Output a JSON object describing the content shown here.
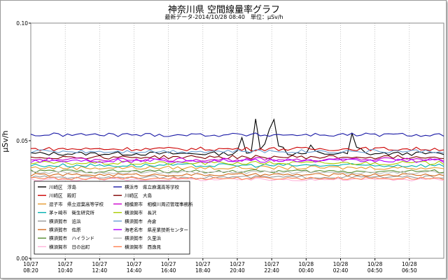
{
  "title": "神奈川県 空間線量率グラフ",
  "subtitle": "最新データ-2014/10/28 08:40　単位：μSv/h",
  "chart_data": {
    "type": "line",
    "ylabel": "μSv/h",
    "ylim": [
      0.0,
      0.1
    ],
    "yticks": [
      "0.00",
      "0.05",
      "0.10"
    ],
    "xticks": [
      [
        "10/27",
        "08:20"
      ],
      [
        "10/27",
        "10:40"
      ],
      [
        "10/27",
        "12:40"
      ],
      [
        "10/27",
        "14:40"
      ],
      [
        "10/27",
        "16:40"
      ],
      [
        "10/27",
        "18:40"
      ],
      [
        "10/27",
        "20:40"
      ],
      [
        "10/27",
        "22:40"
      ],
      [
        "10/28",
        "00:40"
      ],
      [
        "10/28",
        "02:40"
      ],
      [
        "10/28",
        "04:50"
      ],
      [
        "10/28",
        "06:50"
      ]
    ],
    "grid": "x-dotted",
    "legend_position": "bottom-left",
    "series": [
      {
        "name": "川崎区　浮島",
        "color": "#000000",
        "base": 0.0445,
        "jit": 0.0008,
        "spikes": [
          [
            0.51,
            0.052
          ],
          [
            0.545,
            0.06
          ],
          [
            0.575,
            0.058
          ],
          [
            0.585,
            0.066
          ],
          [
            0.605,
            0.05
          ],
          [
            0.68,
            0.049
          ],
          [
            0.78,
            0.055
          ],
          [
            0.795,
            0.048
          ]
        ]
      },
      {
        "name": "川崎区　殿町",
        "color": "#cc0000",
        "base": 0.0465,
        "jit": 0.0008
      },
      {
        "name": "逗子市　県立逗葉高等学校",
        "color": "#e69a2e",
        "base": 0.0385,
        "jit": 0.0008
      },
      {
        "name": "茅ヶ崎市　衛生研究所",
        "color": "#00b0b0",
        "base": 0.0395,
        "jit": 0.0008
      },
      {
        "name": "横須賀市　追浜",
        "color": "#999999",
        "base": 0.0345,
        "jit": 0.0006
      },
      {
        "name": "横須賀市　佐原",
        "color": "#d2691e",
        "base": 0.0355,
        "jit": 0.0006
      },
      {
        "name": "横須賀市　ハイランド",
        "color": "#558b2f",
        "base": 0.037,
        "jit": 0.0007
      },
      {
        "name": "横須賀市　日の出町",
        "color": "#ffb3d9",
        "base": 0.0335,
        "jit": 0.0006
      },
      {
        "name": "横浜市　県立麻溝高等学校",
        "color": "#1a1aa6",
        "base": 0.0525,
        "jit": 0.0008
      },
      {
        "name": "川崎区　大島",
        "color": "#800000",
        "base": 0.043,
        "jit": 0.0008
      },
      {
        "name": "相模原市　相模川周辺管理事務所",
        "color": "#cc00cc",
        "base": 0.042,
        "jit": 0.0008
      },
      {
        "name": "横須賀市　長沢",
        "color": "#aacc00",
        "base": 0.0405,
        "jit": 0.0008
      },
      {
        "name": "横須賀市　舟倉",
        "color": "#6a9fd4",
        "base": 0.0455,
        "jit": 0.0008
      },
      {
        "name": "海老名市　県産業技術センター",
        "color": "#b000ff",
        "base": 0.0415,
        "jit": 0.0008
      },
      {
        "name": "横須賀市　久里浜",
        "color": "#bbbbbb",
        "base": 0.0365,
        "jit": 0.0006
      },
      {
        "name": "横須賀市　西逸見",
        "color": "#ff7f50",
        "base": 0.034,
        "jit": 0.0006
      }
    ]
  }
}
